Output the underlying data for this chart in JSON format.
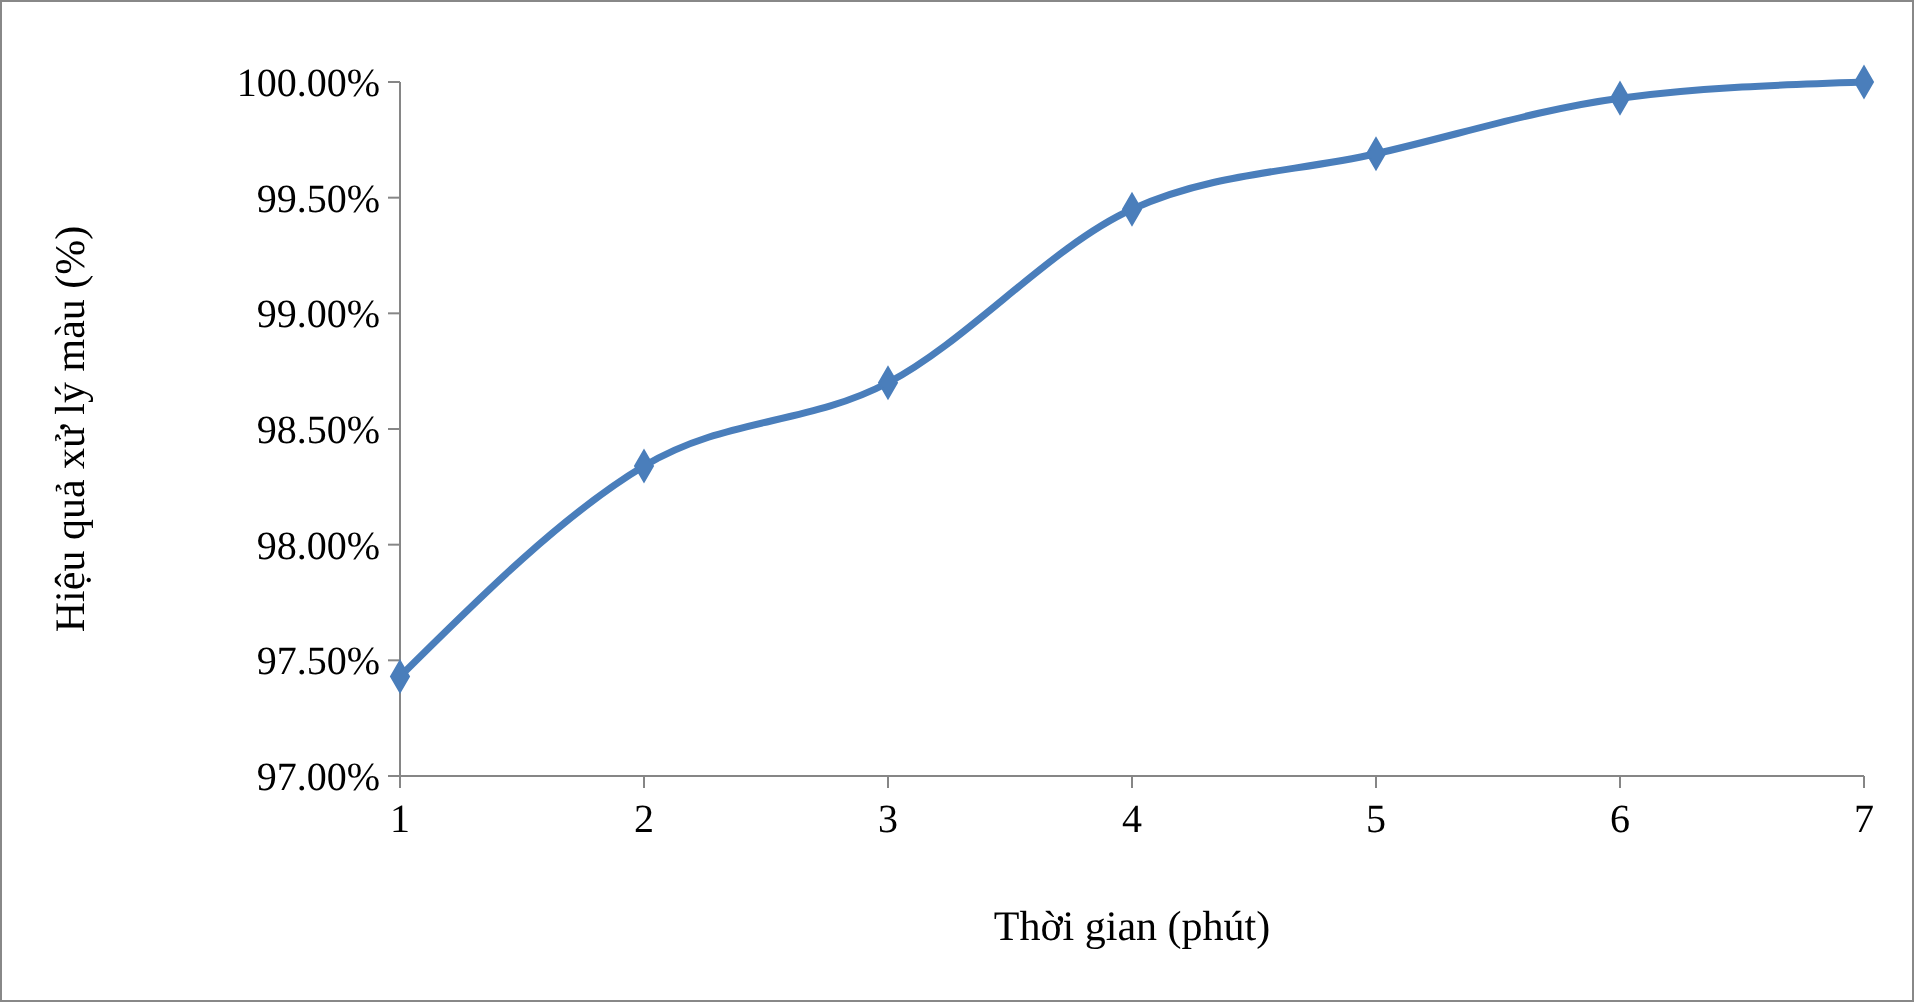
{
  "chart_data": {
    "type": "line",
    "xlabel": "Thời gian (phút)",
    "ylabel": "Hiệu quả xử lý màu (%)",
    "x": [
      1,
      2,
      3,
      4,
      5,
      6,
      7
    ],
    "series": [
      {
        "color": "#4a7ebb",
        "values": [
          97.43,
          98.34,
          98.7,
          99.45,
          99.69,
          99.93,
          100.0
        ]
      }
    ],
    "xlim": [
      1,
      7
    ],
    "xticks": [
      1,
      2,
      3,
      4,
      5,
      6,
      7
    ],
    "ylim": [
      97,
      100
    ],
    "yticks": [
      {
        "value": 97,
        "label": "97.00%"
      },
      {
        "value": 97.5,
        "label": "97.50%"
      },
      {
        "value": 98,
        "label": "98.00%"
      },
      {
        "value": 98.5,
        "label": "98.50%"
      },
      {
        "value": 99,
        "label": "99.00%"
      },
      {
        "value": 99.5,
        "label": "99.50%"
      },
      {
        "value": 100,
        "label": "100.00%"
      }
    ],
    "grid": false,
    "marker": "diamond",
    "line_style": "solid"
  }
}
